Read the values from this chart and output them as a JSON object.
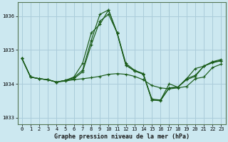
{
  "background_color": "#cce8f0",
  "grid_color": "#aaccda",
  "line_color": "#1a5c1a",
  "title": "Graphe pression niveau de la mer (hPa)",
  "ylim": [
    1032.8,
    1036.4
  ],
  "xlim": [
    -0.5,
    23.5
  ],
  "yticks": [
    1033,
    1034,
    1035,
    1036
  ],
  "xticks": [
    0,
    1,
    2,
    3,
    4,
    5,
    6,
    7,
    8,
    9,
    10,
    11,
    12,
    13,
    14,
    15,
    16,
    17,
    18,
    19,
    20,
    21,
    22,
    23
  ],
  "series": [
    {
      "x": [
        0,
        1,
        2,
        3,
        4,
        5,
        6,
        7,
        8,
        9,
        10,
        11,
        12,
        13,
        14,
        15,
        16,
        17,
        18,
        19,
        20,
        21,
        22,
        23
      ],
      "y": [
        1034.75,
        1034.2,
        1034.15,
        1034.12,
        1034.05,
        1034.08,
        1034.12,
        1034.15,
        1034.18,
        1034.22,
        1034.28,
        1034.3,
        1034.28,
        1034.22,
        1034.12,
        1033.95,
        1033.88,
        1033.85,
        1033.88,
        1033.92,
        1034.15,
        1034.2,
        1034.48,
        1034.58
      ]
    },
    {
      "x": [
        0,
        1,
        2,
        3,
        4,
        6,
        7,
        8,
        9,
        10,
        11,
        12,
        13,
        14,
        15,
        16,
        17,
        18,
        19,
        20,
        21,
        22,
        23
      ],
      "y": [
        1034.75,
        1034.2,
        1034.15,
        1034.12,
        1034.05,
        1034.15,
        1034.35,
        1035.15,
        1035.85,
        1036.05,
        1035.5,
        1034.55,
        1034.38,
        1034.3,
        1033.52,
        1033.5,
        1033.88,
        1033.9,
        1034.12,
        1034.22,
        1034.52,
        1034.65,
        1034.68
      ]
    },
    {
      "x": [
        0,
        1,
        2,
        3,
        4,
        5,
        6,
        7,
        8,
        9,
        10,
        11,
        12,
        13,
        14,
        15,
        16,
        17,
        18,
        19,
        20,
        21,
        22,
        23
      ],
      "y": [
        1034.75,
        1034.2,
        1034.15,
        1034.12,
        1034.05,
        1034.1,
        1034.2,
        1034.6,
        1035.5,
        1035.75,
        1036.18,
        1035.5,
        1034.6,
        1034.4,
        1034.3,
        1033.55,
        1033.52,
        1034.0,
        1033.9,
        1034.15,
        1034.45,
        1034.52,
        1034.62,
        1034.68
      ]
    },
    {
      "x": [
        0,
        1,
        2,
        3,
        4,
        5,
        6,
        7,
        8,
        9,
        10,
        11,
        12,
        13,
        14,
        15,
        16,
        17,
        18,
        19,
        20,
        21,
        22,
        23
      ],
      "y": [
        1034.75,
        1034.2,
        1034.15,
        1034.12,
        1034.05,
        1034.1,
        1034.18,
        1034.4,
        1035.28,
        1036.05,
        1036.18,
        1035.48,
        1034.55,
        1034.38,
        1034.28,
        1033.52,
        1033.52,
        1033.88,
        1033.9,
        1034.15,
        1034.25,
        1034.52,
        1034.65,
        1034.72
      ]
    }
  ]
}
